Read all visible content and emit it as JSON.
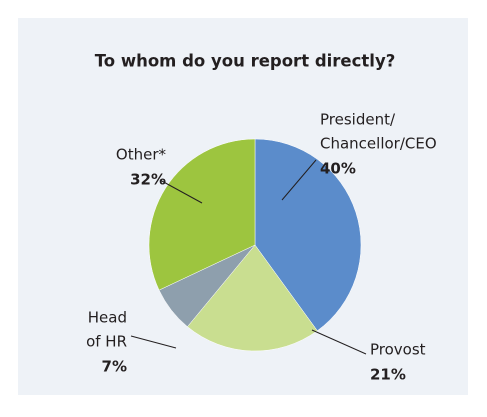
{
  "chart_data": {
    "type": "pie",
    "title": "To whom do you report directly?",
    "categories": [
      [
        "President/",
        "Chancellor/CEO"
      ],
      [
        "Provost"
      ],
      [
        "Head",
        "of HR"
      ],
      [
        "Other*"
      ]
    ],
    "values": [
      40,
      21,
      7,
      32
    ],
    "value_labels": [
      "40%",
      "21%",
      "7%",
      "32%"
    ],
    "colors": [
      "#5b8ccb",
      "#c9de90",
      "#8e9fad",
      "#9dc53f"
    ]
  }
}
